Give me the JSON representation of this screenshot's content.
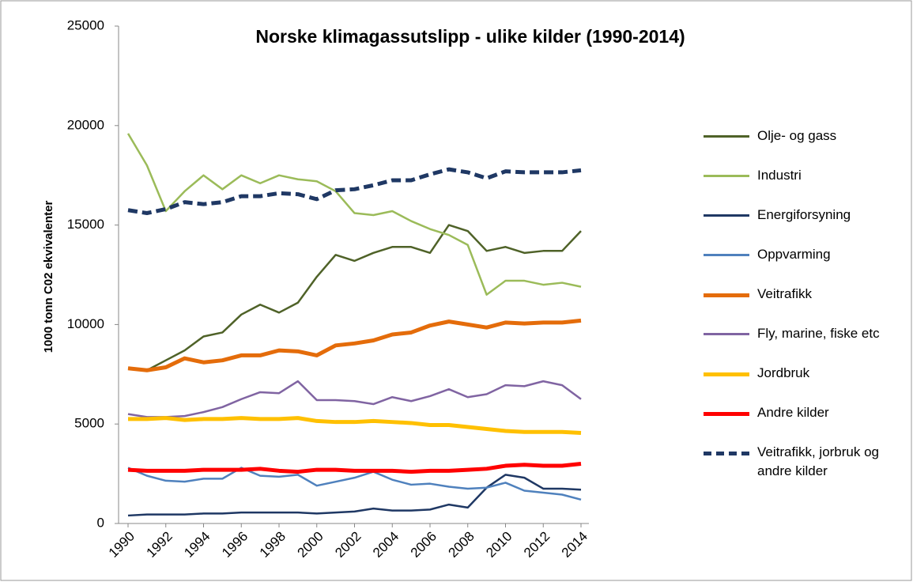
{
  "chart_data": {
    "type": "line",
    "title": "Norske klimagassutslipp  - ulike kilder (1990-2014)",
    "ylabel": "1000 tonn C02 ekvivalenter",
    "x": [
      1990,
      1991,
      1992,
      1993,
      1994,
      1995,
      1996,
      1997,
      1998,
      1999,
      2000,
      2001,
      2002,
      2003,
      2004,
      2005,
      2006,
      2007,
      2008,
      2009,
      2010,
      2011,
      2012,
      2013,
      2014
    ],
    "xlim": [
      1990,
      2014
    ],
    "xticks": [
      1990,
      1992,
      1994,
      1996,
      1998,
      2000,
      2002,
      2004,
      2006,
      2008,
      2010,
      2012,
      2014
    ],
    "ylim": [
      0,
      25000
    ],
    "yticks": [
      0,
      5000,
      10000,
      15000,
      20000,
      25000
    ],
    "series": [
      {
        "name": "Olje- og gass",
        "color": "#4f6228",
        "width": 2.5,
        "values": [
          7800,
          7700,
          8200,
          8700,
          9400,
          9600,
          10500,
          11000,
          10600,
          11100,
          12400,
          13500,
          13200,
          13600,
          13900,
          13900,
          13600,
          15000,
          14700,
          13700,
          13900,
          13600,
          13700,
          13700,
          14700
        ]
      },
      {
        "name": "Industri",
        "color": "#9bbb59",
        "width": 2.5,
        "values": [
          19600,
          18000,
          15700,
          16700,
          17500,
          16800,
          17500,
          17100,
          17500,
          17300,
          17200,
          16700,
          15600,
          15500,
          15700,
          15200,
          14800,
          14500,
          14000,
          11500,
          12200,
          12200,
          12000,
          12100,
          11900
        ]
      },
      {
        "name": "Energiforsyning",
        "color": "#1f3864",
        "width": 2.5,
        "values": [
          400,
          450,
          450,
          450,
          500,
          500,
          550,
          550,
          550,
          550,
          500,
          550,
          600,
          750,
          650,
          650,
          700,
          950,
          800,
          1800,
          2450,
          2300,
          1750,
          1750,
          1700
        ]
      },
      {
        "name": "Oppvarming",
        "color": "#4f81bd",
        "width": 2.5,
        "values": [
          2800,
          2400,
          2150,
          2100,
          2250,
          2250,
          2800,
          2400,
          2350,
          2450,
          1900,
          2100,
          2300,
          2600,
          2200,
          1950,
          2000,
          1850,
          1750,
          1800,
          2050,
          1650,
          1550,
          1450,
          1200
        ]
      },
      {
        "name": "Veitrafikk",
        "color": "#e46c0a",
        "width": 5,
        "values": [
          7800,
          7700,
          7850,
          8300,
          8100,
          8200,
          8450,
          8450,
          8700,
          8650,
          8450,
          8950,
          9050,
          9200,
          9500,
          9600,
          9950,
          10150,
          10000,
          9850,
          10100,
          10050,
          10100,
          10100,
          10200
        ]
      },
      {
        "name": "Fly, marine, fiske etc",
        "color": "#8064a2",
        "width": 2.5,
        "values": [
          5500,
          5350,
          5350,
          5400,
          5600,
          5850,
          6250,
          6600,
          6550,
          7150,
          6200,
          6200,
          6150,
          6000,
          6350,
          6150,
          6400,
          6750,
          6350,
          6500,
          6950,
          6900,
          7150,
          6950,
          6250
        ]
      },
      {
        "name": "Jordbruk",
        "color": "#ffc000",
        "width": 5,
        "values": [
          5250,
          5250,
          5300,
          5200,
          5250,
          5250,
          5300,
          5250,
          5250,
          5300,
          5150,
          5100,
          5100,
          5150,
          5100,
          5050,
          4950,
          4950,
          4850,
          4750,
          4650,
          4600,
          4600,
          4600,
          4550
        ]
      },
      {
        "name": "Andre kilder",
        "color": "#ff0000",
        "width": 5,
        "values": [
          2700,
          2650,
          2650,
          2650,
          2700,
          2700,
          2700,
          2750,
          2650,
          2600,
          2700,
          2700,
          2650,
          2650,
          2650,
          2600,
          2650,
          2650,
          2700,
          2750,
          2900,
          2950,
          2900,
          2900,
          3000
        ]
      },
      {
        "name": "Veitrafikk, jorbruk og andre kilder",
        "color": "#1f3864",
        "width": 5,
        "dashed": true,
        "values": [
          15750,
          15600,
          15800,
          16150,
          16050,
          16150,
          16450,
          16450,
          16600,
          16550,
          16300,
          16750,
          16800,
          17000,
          17250,
          17250,
          17550,
          17800,
          17650,
          17350,
          17700,
          17650,
          17650,
          17650,
          17750
        ]
      }
    ]
  }
}
